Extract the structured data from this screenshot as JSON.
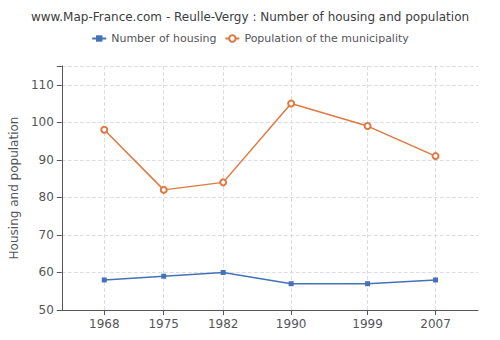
{
  "chart_data": {
    "type": "line",
    "title": "www.Map-France.com - Reulle-Vergy : Number of housing and population",
    "ylabel": "Housing and population",
    "x": [
      1968,
      1975,
      1982,
      1990,
      1999,
      2007
    ],
    "series": [
      {
        "name": "Population of the municipality",
        "color": "#e07840",
        "marker": "circle",
        "values": [
          98,
          82,
          84,
          105,
          99,
          91
        ]
      },
      {
        "name": "Number of housing",
        "color": "#4472b8",
        "marker": "square",
        "values": [
          58,
          59,
          60,
          57,
          57,
          58
        ]
      }
    ],
    "xlim": [
      1963,
      2012
    ],
    "xticks": [
      1968,
      1975,
      1982,
      1990,
      1999,
      2007
    ],
    "ylim": [
      50,
      115
    ],
    "yticks": [
      50,
      60,
      70,
      80,
      90,
      100,
      110
    ],
    "grid": true,
    "legend": "top"
  }
}
